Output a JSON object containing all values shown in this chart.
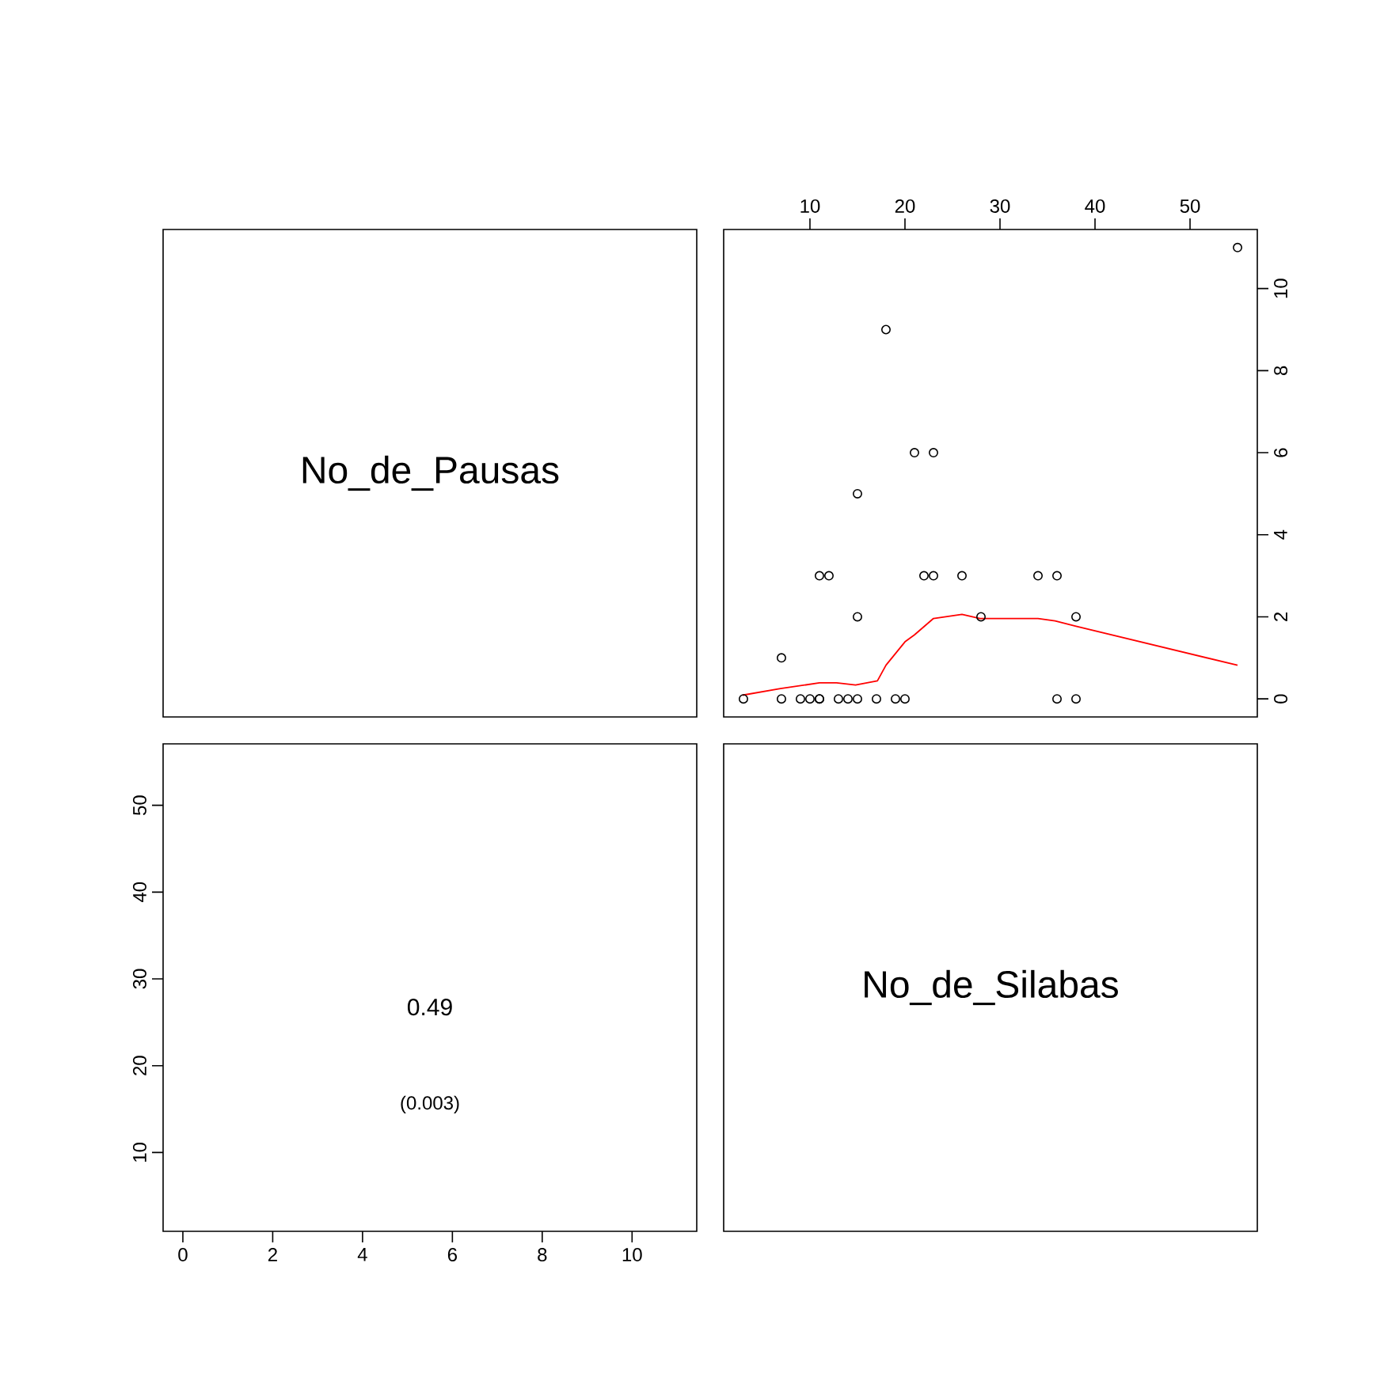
{
  "chart_data": [
    {
      "type": "other",
      "annotations": [
        "No_de_Pausas"
      ]
    },
    {
      "type": "scatter",
      "xlim": [
        0.92,
        57.08
      ],
      "ylim": [
        -0.44,
        11.44
      ],
      "xticks": [
        10,
        20,
        30,
        40,
        50
      ],
      "yticks": [
        0,
        2,
        4,
        6,
        8,
        10
      ],
      "grid": false,
      "series": [
        {
          "type": "scatter",
          "color": "#000000",
          "marker": "circle",
          "x": [
            55,
            18,
            21,
            23,
            15,
            11,
            12,
            22,
            23,
            26,
            34,
            36,
            15,
            28,
            38,
            7,
            3,
            7,
            9,
            10,
            11,
            11,
            13,
            14,
            15,
            17,
            19,
            20,
            36,
            38
          ],
          "values": [
            11,
            9,
            6,
            6,
            5,
            3,
            3,
            3,
            3,
            3,
            3,
            3,
            2,
            2,
            2,
            1,
            0,
            0,
            0,
            0,
            0,
            0,
            0,
            0,
            0,
            0,
            0,
            0,
            0,
            0
          ]
        },
        {
          "type": "line",
          "color": "#ff0000",
          "line_style": "solid",
          "x": [
            2.9,
            6.9,
            11.0,
            12.8,
            14.8,
            17.1,
            18.0,
            20.0,
            21.0,
            23.0,
            26.0,
            27.9,
            34.0,
            35.8,
            38.0,
            55.0
          ],
          "values": [
            0.09,
            0.25,
            0.39,
            0.39,
            0.34,
            0.44,
            0.82,
            1.39,
            1.56,
            1.96,
            2.06,
            1.96,
            1.96,
            1.9,
            1.77,
            0.82
          ]
        }
      ]
    },
    {
      "type": "scatter",
      "xlim": [
        -0.44,
        11.44
      ],
      "ylim": [
        0.92,
        57.08
      ],
      "xticks": [
        0,
        2,
        4,
        6,
        8,
        10
      ],
      "yticks": [
        10,
        20,
        30,
        40,
        50
      ],
      "annotations": [
        "0.49",
        "(0.003)"
      ]
    },
    {
      "type": "other",
      "annotations": [
        "No_de_Silabas"
      ]
    }
  ]
}
